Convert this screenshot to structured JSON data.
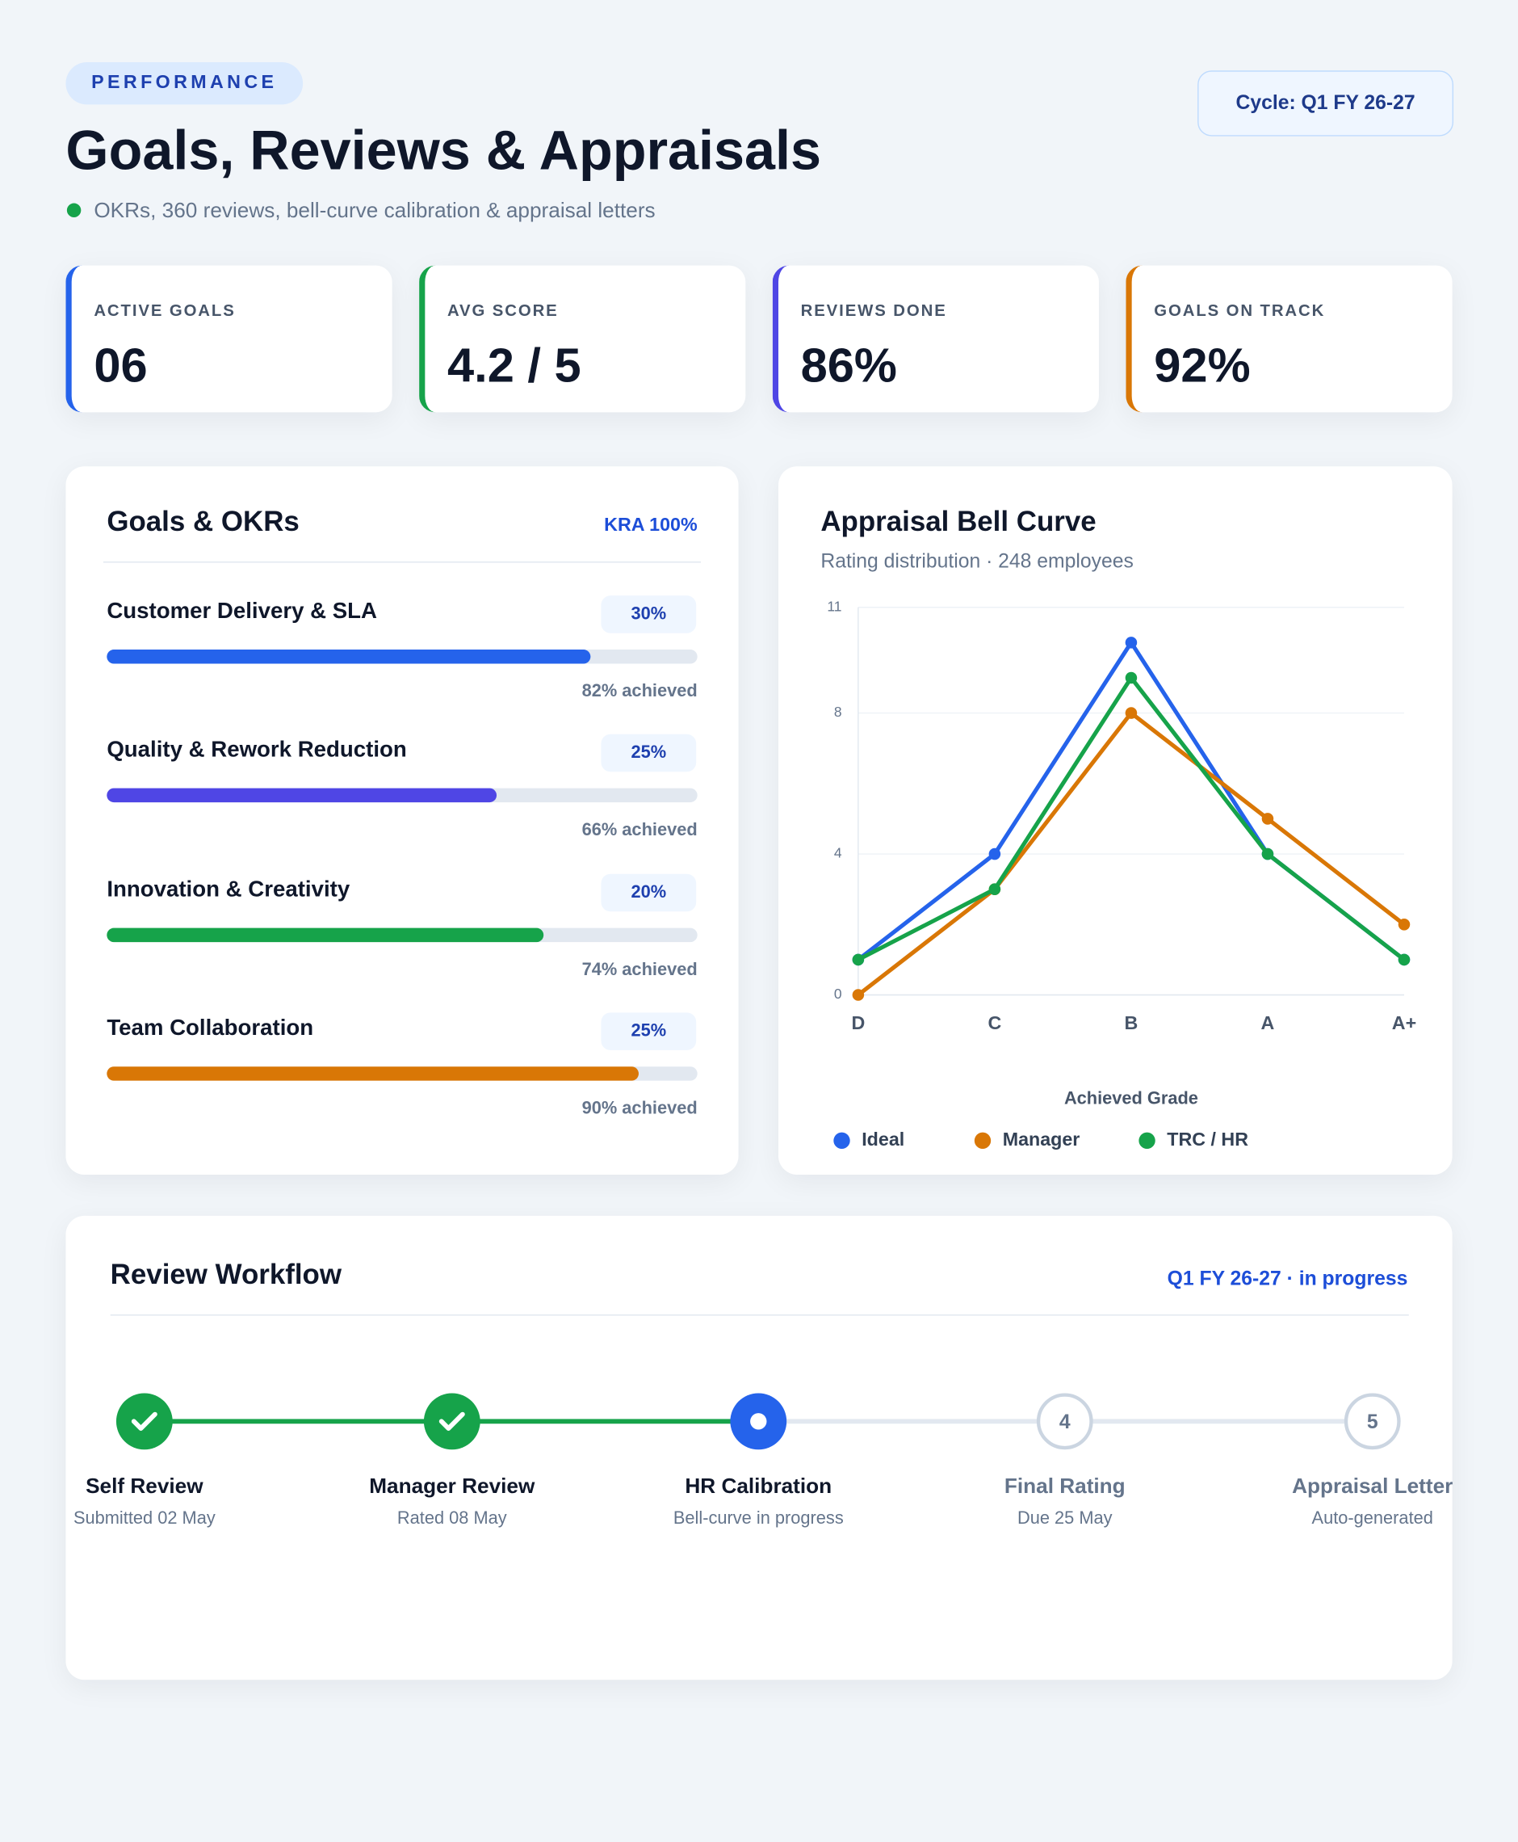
{
  "header": {
    "tag": "PERFORMANCE",
    "title": "Goals, Reviews & Appraisals",
    "subtitle": "OKRs, 360 reviews, bell-curve calibration & appraisal letters",
    "cycle": "Cycle: Q1 FY 26-27"
  },
  "kpis": [
    {
      "label": "ACTIVE GOALS",
      "value": "06",
      "color": "#2563eb"
    },
    {
      "label": "AVG SCORE",
      "value": "4.2 / 5",
      "color": "#16a34a"
    },
    {
      "label": "REVIEWS DONE",
      "value": "86%",
      "color": "#4f46e5"
    },
    {
      "label": "GOALS ON TRACK",
      "value": "92%",
      "color": "#d97706"
    }
  ],
  "goals": {
    "title": "Goals & OKRs",
    "badge": "KRA 100%",
    "items": [
      {
        "name": "Customer Delivery & SLA",
        "weight": "30%",
        "achieved": 82,
        "achieved_label": "82% achieved",
        "color": "#2563eb"
      },
      {
        "name": "Quality & Rework Reduction",
        "weight": "25%",
        "achieved": 66,
        "achieved_label": "66% achieved",
        "color": "#4f46e5"
      },
      {
        "name": "Innovation & Creativity",
        "weight": "20%",
        "achieved": 74,
        "achieved_label": "74% achieved",
        "color": "#16a34a"
      },
      {
        "name": "Team Collaboration",
        "weight": "25%",
        "achieved": 90,
        "achieved_label": "90% achieved",
        "color": "#d97706"
      }
    ]
  },
  "chart_data": {
    "type": "line",
    "title": "Appraisal Bell Curve",
    "subtitle": "Rating distribution · 248 employees",
    "x_label": "Achieved Grade",
    "categories": [
      "D",
      "C",
      "B",
      "A",
      "A+"
    ],
    "series": [
      {
        "name": "Ideal",
        "color": "#2563eb",
        "values": [
          1,
          4,
          10,
          4,
          1
        ]
      },
      {
        "name": "Manager",
        "color": "#d97706",
        "values": [
          0,
          3,
          8,
          5,
          2
        ]
      },
      {
        "name": "TRC / HR",
        "color": "#16a34a",
        "values": [
          1,
          3,
          9,
          4,
          1
        ]
      }
    ],
    "ylim": [
      0,
      11
    ],
    "yticks": [
      0,
      4,
      8,
      11
    ],
    "grid": true,
    "legend": "bottom-left"
  },
  "workflow": {
    "title": "Review Workflow",
    "status": "Q1 FY 26-27 · in progress",
    "steps": [
      {
        "name": "Self Review",
        "note": "Submitted 02 May",
        "state": "done"
      },
      {
        "name": "Manager Review",
        "note": "Rated 08 May",
        "state": "done"
      },
      {
        "name": "HR Calibration",
        "note": "Bell-curve in progress",
        "state": "current"
      },
      {
        "name": "Final Rating",
        "note": "Due 25 May",
        "state": "pending",
        "marker": "4"
      },
      {
        "name": "Appraisal Letter",
        "note": "Auto-generated",
        "state": "pending",
        "marker": "5"
      }
    ]
  }
}
